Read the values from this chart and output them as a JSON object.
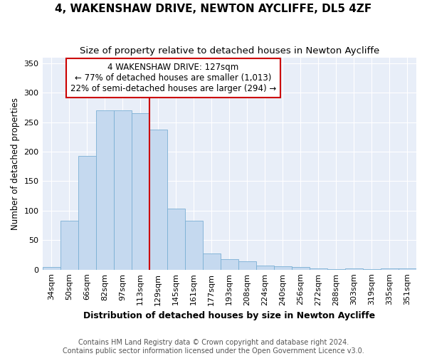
{
  "title": "4, WAKENSHAW DRIVE, NEWTON AYCLIFFE, DL5 4ZF",
  "subtitle": "Size of property relative to detached houses in Newton Aycliffe",
  "xlabel": "Distribution of detached houses by size in Newton Aycliffe",
  "ylabel": "Number of detached properties",
  "categories": [
    "34sqm",
    "50sqm",
    "66sqm",
    "82sqm",
    "97sqm",
    "113sqm",
    "129sqm",
    "145sqm",
    "161sqm",
    "177sqm",
    "193sqm",
    "208sqm",
    "224sqm",
    "240sqm",
    "256sqm",
    "272sqm",
    "288sqm",
    "303sqm",
    "319sqm",
    "335sqm",
    "351sqm"
  ],
  "values": [
    5,
    83,
    193,
    270,
    270,
    265,
    238,
    103,
    83,
    27,
    18,
    14,
    7,
    6,
    5,
    2,
    1,
    2,
    1,
    2,
    2
  ],
  "bar_color": "#c5d9ef",
  "bar_edgecolor": "#7aafd4",
  "property_line_index": 6,
  "annotation_text_line1": "4 WAKENSHAW DRIVE: 127sqm",
  "annotation_text_line2": "← 77% of detached houses are smaller (1,013)",
  "annotation_text_line3": "22% of semi-detached houses are larger (294) →",
  "annotation_box_facecolor": "#ffffff",
  "annotation_box_edgecolor": "#cc0000",
  "property_line_color": "#cc0000",
  "ylim": [
    0,
    360
  ],
  "yticks": [
    0,
    50,
    100,
    150,
    200,
    250,
    300,
    350
  ],
  "background_color": "#e8eef8",
  "fig_facecolor": "#ffffff",
  "footer_line1": "Contains HM Land Registry data © Crown copyright and database right 2024.",
  "footer_line2": "Contains public sector information licensed under the Open Government Licence v3.0.",
  "title_fontsize": 11,
  "subtitle_fontsize": 9.5,
  "xlabel_fontsize": 9,
  "ylabel_fontsize": 8.5,
  "tick_fontsize": 8,
  "annotation_fontsize": 8.5,
  "footer_fontsize": 7
}
